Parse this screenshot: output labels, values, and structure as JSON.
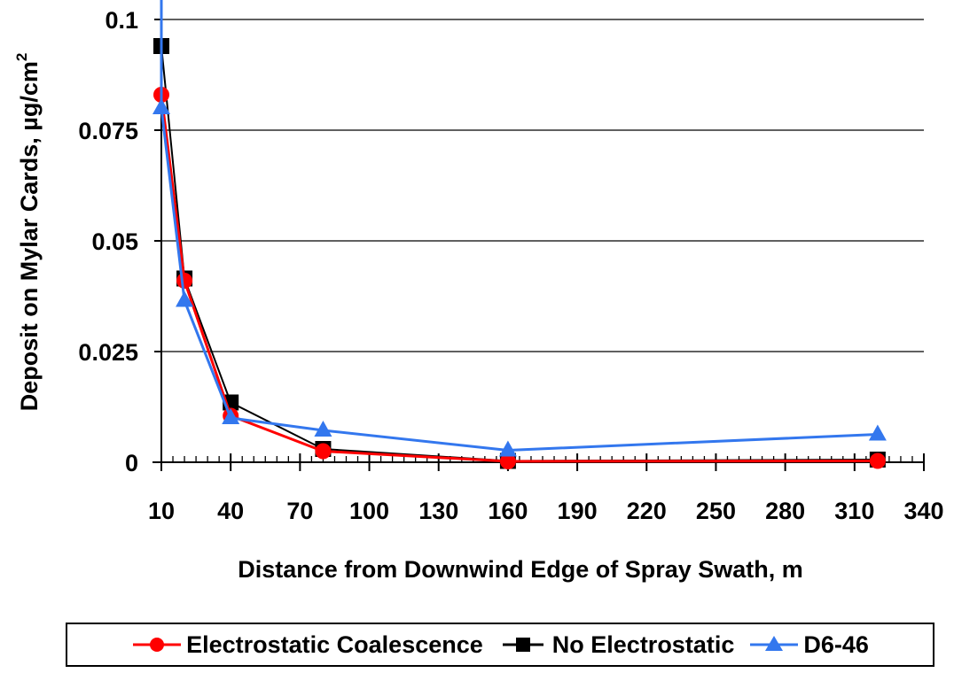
{
  "chart_data": {
    "type": "line",
    "title": "",
    "xlabel": "Distance from Downwind Edge of Spray Swath, m",
    "ylabel": "Deposit on Mylar Cards, µg/cm",
    "ylabel_sup": "2",
    "xlim": [
      10,
      340
    ],
    "ylim": [
      0,
      0.1
    ],
    "x_ticks": [
      10,
      40,
      70,
      100,
      130,
      160,
      190,
      220,
      250,
      280,
      310,
      340
    ],
    "y_ticks": [
      0,
      0.025,
      0.05,
      0.075,
      0.1
    ],
    "y_tick_labels": [
      "0",
      "0.025",
      "0.05",
      "0.075",
      "0.1"
    ],
    "x_minor_tick_step": 5,
    "grid": "horizontal major",
    "legend_position": "bottom",
    "series": [
      {
        "name": "Electrostatic Coalescence",
        "color": "#ff0000",
        "marker": "circle",
        "x": [
          10,
          20,
          40,
          80,
          160,
          320
        ],
        "y": [
          0.083,
          0.041,
          0.0105,
          0.0025,
          0.0002,
          0.0003
        ]
      },
      {
        "name": "No Electrostatic",
        "color": "#000000",
        "marker": "square",
        "x": [
          10,
          20,
          40,
          80,
          160,
          320
        ],
        "y": [
          0.094,
          0.0415,
          0.0135,
          0.003,
          0.0003,
          0.0006
        ]
      },
      {
        "name": "D6-46",
        "color": "#3377ee",
        "marker": "triangle",
        "x": [
          10,
          20,
          40,
          80,
          160,
          320
        ],
        "y": [
          0.08,
          0.0365,
          0.01,
          0.0072,
          0.0027,
          0.0063
        ],
        "line_start_y_top": 0.108
      }
    ]
  }
}
